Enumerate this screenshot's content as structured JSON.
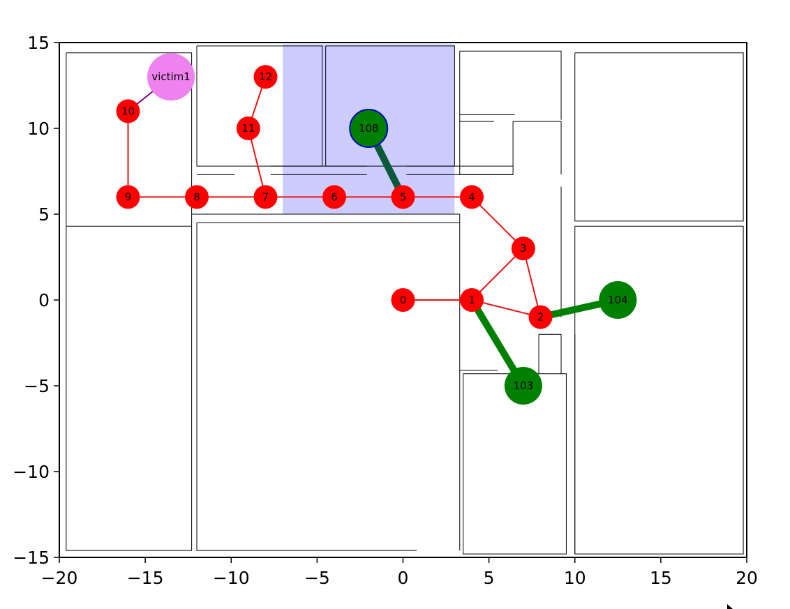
{
  "chart_data": {
    "type": "scatter",
    "title": "",
    "xlabel": "",
    "ylabel": "",
    "xlim": [
      -20,
      20
    ],
    "ylim": [
      -15,
      15
    ],
    "xticks": [
      -20,
      -15,
      -10,
      -5,
      0,
      5,
      10,
      15,
      20
    ],
    "yticks": [
      -15,
      -10,
      -5,
      0,
      5,
      10,
      15
    ],
    "xtick_labels": [
      "−20",
      "−15",
      "−10",
      "−5",
      "0",
      "5",
      "10",
      "15",
      "20"
    ],
    "ytick_labels": [
      "−15",
      "−10",
      "−5",
      "0",
      "5",
      "10",
      "15"
    ],
    "grid": false,
    "highlight_region": {
      "x": [
        -7,
        3
      ],
      "y": [
        5,
        14.9
      ],
      "color": "#ccccff"
    },
    "waypoints": [
      {
        "label": "0",
        "x": 0,
        "y": 0
      },
      {
        "label": "1",
        "x": 4,
        "y": 0
      },
      {
        "label": "2",
        "x": 8,
        "y": -1
      },
      {
        "label": "3",
        "x": 7,
        "y": 3
      },
      {
        "label": "4",
        "x": 4,
        "y": 6
      },
      {
        "label": "5",
        "x": 0,
        "y": 6
      },
      {
        "label": "6",
        "x": -4,
        "y": 6
      },
      {
        "label": "7",
        "x": -8,
        "y": 6
      },
      {
        "label": "8",
        "x": -12,
        "y": 6
      },
      {
        "label": "9",
        "x": -16,
        "y": 6
      },
      {
        "label": "10",
        "x": -16,
        "y": 11
      },
      {
        "label": "11",
        "x": -9,
        "y": 10
      },
      {
        "label": "12",
        "x": -8,
        "y": 13
      }
    ],
    "waypoint_edges": [
      [
        "0",
        "1"
      ],
      [
        "1",
        "2"
      ],
      [
        "1",
        "3"
      ],
      [
        "2",
        "3"
      ],
      [
        "3",
        "4"
      ],
      [
        "4",
        "5"
      ],
      [
        "5",
        "6"
      ],
      [
        "6",
        "7"
      ],
      [
        "7",
        "8"
      ],
      [
        "8",
        "9"
      ],
      [
        "9",
        "10"
      ],
      [
        "7",
        "11"
      ],
      [
        "11",
        "12"
      ]
    ],
    "agents": [
      {
        "label": "103",
        "x": 7,
        "y": -5,
        "link_to": "1"
      },
      {
        "label": "104",
        "x": 12.5,
        "y": 0,
        "link_to": "2"
      },
      {
        "label": "108",
        "x": -2,
        "y": 10,
        "link_to": "5",
        "selected": true
      }
    ],
    "victims": [
      {
        "label": "victim1",
        "x": -13.5,
        "y": 13,
        "link_to": "10"
      }
    ],
    "colors": {
      "waypoint": "#ff0000",
      "waypoint_edge": "#ee1111",
      "agent": "#008000",
      "agent_selected_edge": "#0a5a3a",
      "agent_selected_outline": "#0000cc",
      "victim": "#ee82ee",
      "victim_edge": "#800080",
      "wall": "#000000"
    },
    "walls": [
      [
        [
          -19.6,
          14.4
        ],
        [
          -12.3,
          14.4
        ],
        [
          -12.3,
          -14.6
        ],
        [
          -19.6,
          -14.6
        ],
        [
          -19.6,
          14.4
        ]
      ],
      [
        [
          -19.6,
          4.3
        ],
        [
          -12.3,
          4.3
        ]
      ],
      [
        [
          -12.3,
          5.0
        ],
        [
          -12,
          5.0
        ]
      ],
      [
        [
          -12.3,
          3.2
        ],
        [
          -12.3,
          3.2
        ]
      ],
      [
        [
          -12,
          14.8
        ],
        [
          -4.7,
          14.8
        ],
        [
          -4.7,
          7.8
        ],
        [
          -12,
          7.8
        ],
        [
          -12,
          14.8
        ]
      ],
      [
        [
          -4.5,
          14.8
        ],
        [
          3,
          14.8
        ],
        [
          3,
          7.8
        ],
        [
          -4.5,
          7.8
        ],
        [
          -4.5,
          14.8
        ]
      ],
      [
        [
          -12,
          7.3
        ],
        [
          -9.8,
          7.3
        ]
      ],
      [
        [
          -7.7,
          7.3
        ],
        [
          -2.1,
          7.3
        ]
      ],
      [
        [
          -7.7,
          7.8
        ],
        [
          -2.1,
          7.8
        ]
      ],
      [
        [
          0.2,
          7.3
        ],
        [
          6.4,
          7.3
        ]
      ],
      [
        [
          0.2,
          7.8
        ],
        [
          6.4,
          7.8
        ]
      ],
      [
        [
          -12,
          5.0
        ],
        [
          3.3,
          5.0
        ],
        [
          3.3,
          4.5
        ],
        [
          -12,
          4.5
        ]
      ],
      [
        [
          -12,
          3.5
        ],
        [
          -12,
          1.3
        ]
      ],
      [
        [
          -12,
          4.5
        ],
        [
          -12,
          -14.6
        ],
        [
          0.8,
          -14.6
        ]
      ],
      [
        [
          3.3,
          4.5
        ],
        [
          3.3,
          -14.6
        ]
      ],
      [
        [
          3.3,
          14.5
        ],
        [
          9.2,
          14.5
        ],
        [
          9.2,
          10.5
        ]
      ],
      [
        [
          3.3,
          14.5
        ],
        [
          3.3,
          7.3
        ],
        [
          6.4,
          7.3
        ],
        [
          6.4,
          10.4
        ],
        [
          9.2,
          10.4
        ],
        [
          9.2,
          7.3
        ]
      ],
      [
        [
          3.3,
          10.8
        ],
        [
          6.5,
          10.8
        ]
      ],
      [
        [
          3.3,
          10.4
        ],
        [
          5.3,
          10.4
        ]
      ],
      [
        [
          9.2,
          6.6
        ],
        [
          9.2,
          -1.0
        ]
      ],
      [
        [
          3.3,
          -4.1
        ],
        [
          5.5,
          -4.1
        ]
      ],
      [
        [
          3.5,
          -4.3
        ],
        [
          9.5,
          -4.3
        ],
        [
          9.5,
          -14.8
        ],
        [
          3.5,
          -14.8
        ],
        [
          3.5,
          -4.3
        ]
      ],
      [
        [
          7.9,
          -2.0
        ],
        [
          9.2,
          -2.0
        ]
      ],
      [
        [
          7.9,
          -2.0
        ],
        [
          7.9,
          -4.3
        ]
      ],
      [
        [
          9.2,
          -2.0
        ],
        [
          9.2,
          -4.3
        ]
      ],
      [
        [
          10,
          14.4
        ],
        [
          19.8,
          14.4
        ],
        [
          19.8,
          4.6
        ],
        [
          10,
          4.6
        ],
        [
          10,
          14.4
        ]
      ],
      [
        [
          10,
          4.3
        ],
        [
          19.8,
          4.3
        ],
        [
          19.8,
          -14.8
        ],
        [
          10,
          -14.8
        ],
        [
          10,
          4.3
        ]
      ],
      [
        [
          10,
          -14.8
        ],
        [
          10,
          -2.0
        ]
      ]
    ]
  }
}
